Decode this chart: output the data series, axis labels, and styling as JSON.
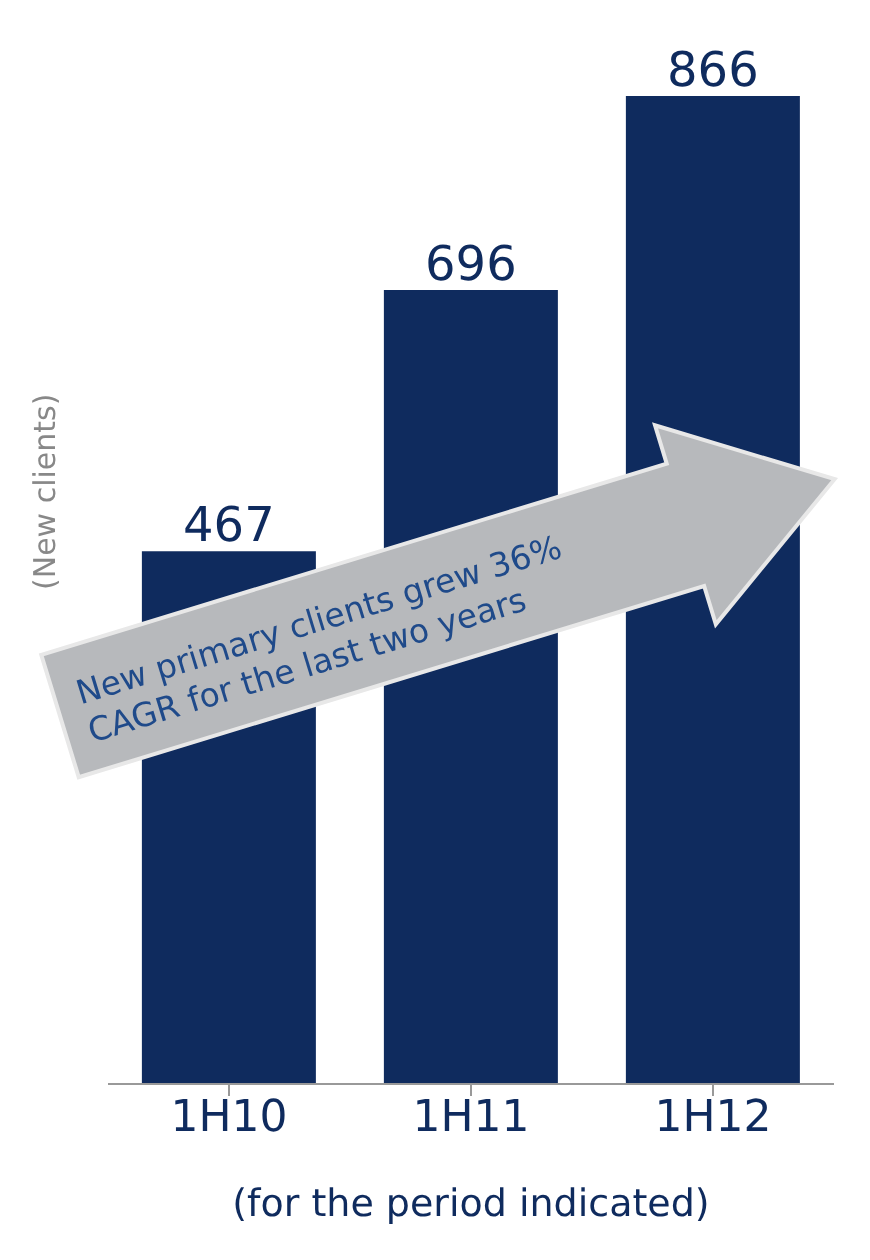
{
  "chart_data": {
    "type": "bar",
    "categories": [
      "1H10",
      "1H11",
      "1H12"
    ],
    "values": [
      467,
      696,
      866
    ],
    "color": "#0f2b5e",
    "data_labels": true,
    "ylabel": "(New clients)",
    "xlabel": "(for the period indicated)",
    "annotations": [
      "New primary clients grew 36% CAGR for the last two years"
    ],
    "grid": false,
    "legend": false
  }
}
